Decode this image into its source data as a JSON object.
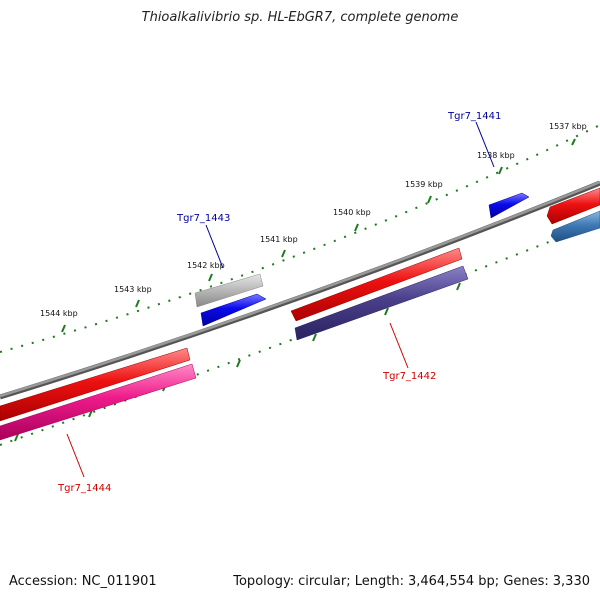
{
  "title": "Thioalkalivibrio sp. HL-EbGR7, complete genome",
  "accession_label": "Accession:",
  "accession": "NC_011901",
  "topology_label": "Topology:",
  "topology": "circular",
  "length_label": "Length:",
  "length": "3,464,554 bp",
  "genes_label": "Genes:",
  "genes": "3,330",
  "colors": {
    "backbone": "#888888",
    "ticks": "#1f7a1f",
    "forward_red": "#ee1111",
    "reverse_red": "#ee1111",
    "blue": "#0a0aee",
    "gray": "#bbbbbb",
    "slate": "#4a3f8a",
    "steel": "#3f7ab5",
    "pink": "#ee1a8a",
    "label_blue": "#00009a",
    "label_red": "#cc0000"
  },
  "position_ticks": [
    {
      "label": "1537 kbp"
    },
    {
      "label": "1538 kbp"
    },
    {
      "label": "1539 kbp"
    },
    {
      "label": "1540 kbp"
    },
    {
      "label": "1541 kbp"
    },
    {
      "label": "1542 kbp"
    },
    {
      "label": "1543 kbp"
    },
    {
      "label": "1544 kbp"
    }
  ],
  "features": [
    {
      "label": "Tgr7_1441",
      "strand": "forward",
      "color": "blue"
    },
    {
      "label": "Tgr7_1442",
      "strand": "reverse",
      "color": "reverse_red"
    },
    {
      "label": "Tgr7_1443",
      "strand": "forward",
      "color": "blue"
    },
    {
      "label": "Tgr7_1444",
      "strand": "reverse",
      "color": "reverse_red"
    }
  ]
}
